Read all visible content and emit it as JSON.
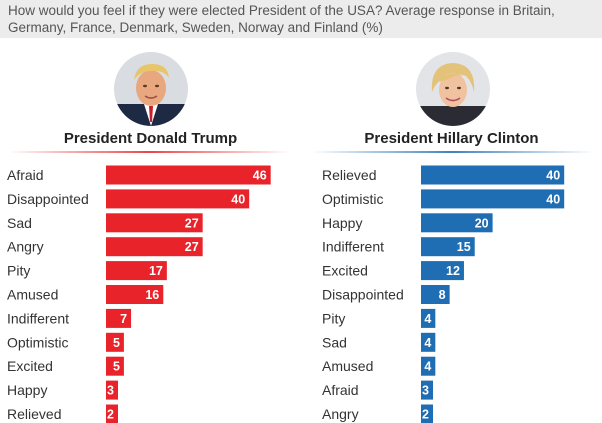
{
  "header": {
    "question": "How would you feel if they were elected President of the USA? Average response in Britain, Germany, France, Denmark, Sweden, Norway and Finland (%)",
    "background_color": "#ececec"
  },
  "panels": {
    "trump": {
      "title": "President Donald Trump",
      "accent_color": "#e8232a",
      "portrait_icon": "trump-portrait"
    },
    "clinton": {
      "title": "President Hillary Clinton",
      "accent_color": "#1f6db2",
      "portrait_icon": "clinton-portrait"
    }
  },
  "chart_data": [
    {
      "type": "bar",
      "orientation": "horizontal",
      "title": "President Donald Trump",
      "categories": [
        "Afraid",
        "Disappointed",
        "Sad",
        "Angry",
        "Pity",
        "Amused",
        "Indifferent",
        "Optimistic",
        "Excited",
        "Happy",
        "Relieved"
      ],
      "values": [
        46,
        40,
        27,
        27,
        17,
        16,
        7,
        5,
        5,
        3,
        2
      ],
      "color": "#e8232a"
    },
    {
      "type": "bar",
      "orientation": "horizontal",
      "title": "President Hillary Clinton",
      "categories": [
        "Relieved",
        "Optimistic",
        "Happy",
        "Indifferent",
        "Excited",
        "Disappointed",
        "Pity",
        "Sad",
        "Amused",
        "Afraid",
        "Angry"
      ],
      "values": [
        40,
        40,
        20,
        15,
        12,
        8,
        4,
        4,
        4,
        3,
        2
      ],
      "color": "#1f6db2"
    }
  ]
}
